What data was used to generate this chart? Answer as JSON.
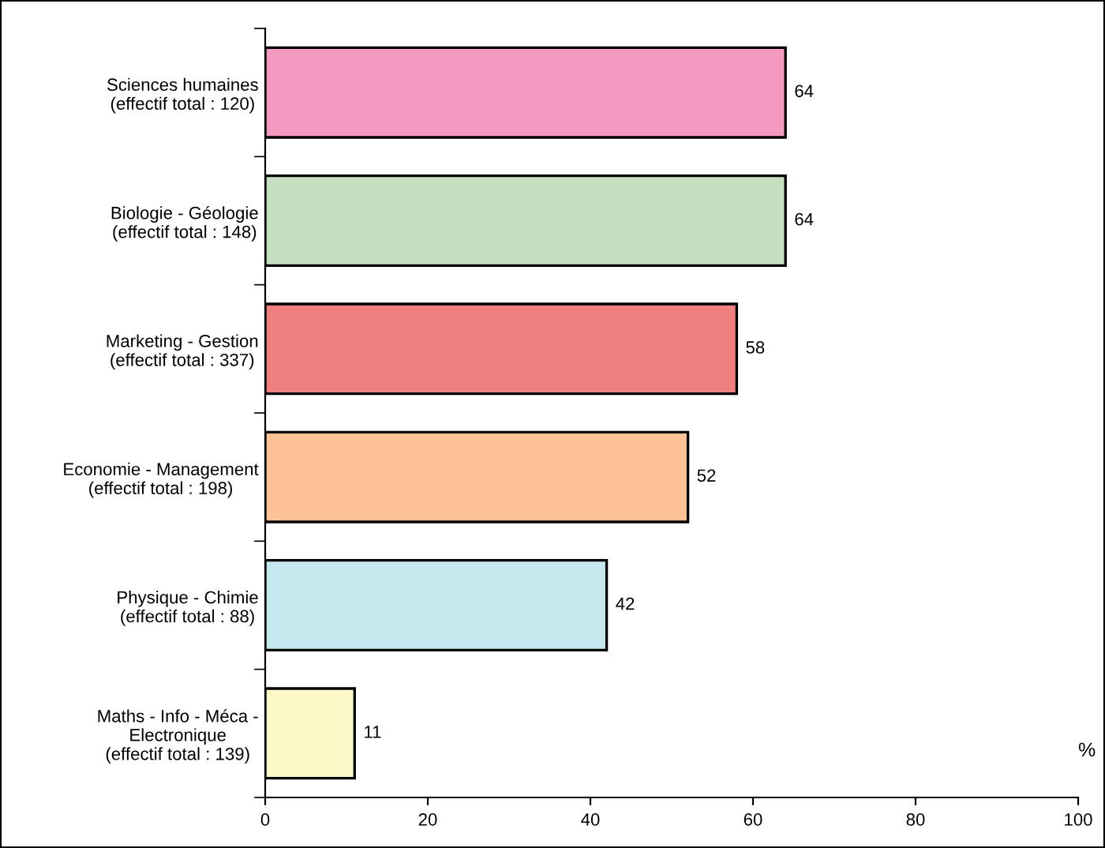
{
  "chart_data": {
    "type": "bar",
    "orientation": "horizontal",
    "categories": [
      "Sciences humaines\n(effectif total : 120)",
      "Biologie - Géologie\n(effectif total : 148)",
      "Marketing - Gestion\n(effectif total : 337)",
      "Economie - Management\n(effectif total : 198)",
      "Physique - Chimie\n(effectif total : 88)",
      "Maths - Info - Méca -\nElectronique\n(effectif total : 139)"
    ],
    "values": [
      64,
      64,
      58,
      52,
      42,
      11
    ],
    "colors": [
      "#f49ac1",
      "#c4e0c0",
      "#f08080",
      "#fdc396",
      "#c5e8ef",
      "#fdf8c8"
    ],
    "xlabel": "%",
    "xlim": [
      0,
      100
    ],
    "xticks": [
      0,
      20,
      40,
      60,
      80,
      100
    ],
    "data_labels": true,
    "grid": false
  }
}
